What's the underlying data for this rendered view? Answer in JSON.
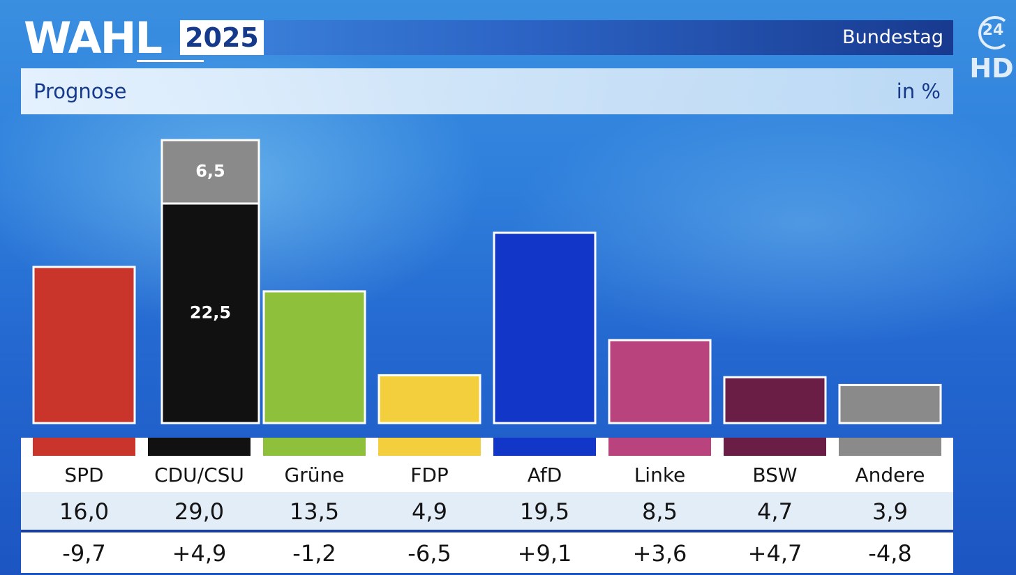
{
  "header": {
    "logo_text": "WAHL",
    "year": "2025",
    "election": "Bundestag",
    "subtitle": "Prognose",
    "unit": "in %",
    "channel_number": "24",
    "channel_suffix": "HD"
  },
  "colors": {
    "SPD": "#c9352b",
    "CDU/CSU": "#111111",
    "CDU/CSU_change": "#8a8a8a",
    "Grüne": "#8fc03c",
    "FDP": "#f4cf3d",
    "AfD": "#1136c8",
    "Linke": "#b8437d",
    "BSW": "#6a1d45",
    "Andere": "#8a8a8a"
  },
  "chart_data": {
    "type": "bar",
    "title": "Prognose",
    "unit": "in %",
    "categories": [
      "SPD",
      "CDU/CSU",
      "Grüne",
      "FDP",
      "AfD",
      "Linke",
      "BSW",
      "Andere"
    ],
    "values": [
      16.0,
      29.0,
      13.5,
      4.9,
      19.5,
      8.5,
      4.7,
      3.9
    ],
    "value_labels": [
      "16,0",
      "29,0",
      "13,5",
      "4,9",
      "19,5",
      "8,5",
      "4,7",
      "3,9"
    ],
    "changes": [
      -9.7,
      4.9,
      -1.2,
      -6.5,
      9.1,
      3.6,
      4.7,
      -4.8
    ],
    "change_labels": [
      "-9,7",
      "+4,9",
      "-1,2",
      "-6,5",
      "+9,1",
      "+3,6",
      "+4,7",
      "-4,8"
    ],
    "cdu_csu_split": {
      "lower_value": 22.5,
      "lower_label": "22,5",
      "upper_value": 6.5,
      "upper_label": "6,5"
    },
    "grid": false,
    "legend": "table below bars"
  }
}
